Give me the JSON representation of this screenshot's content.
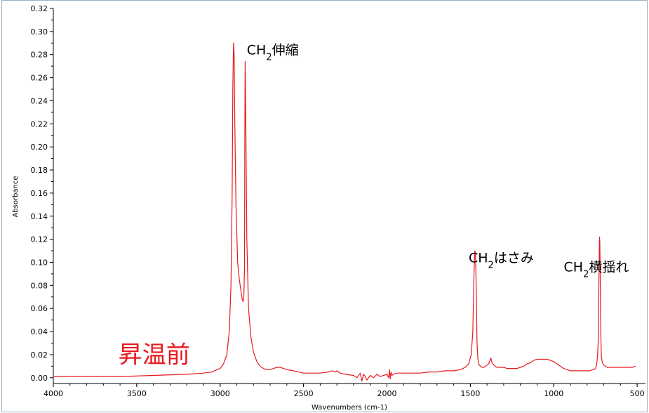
{
  "chart_data": {
    "type": "line",
    "title": "",
    "xlabel": "Wavenumbers (cm-1)",
    "ylabel": "Absorbance",
    "xlim": [
      4000,
      450
    ],
    "ylim": [
      -0.005,
      0.32
    ],
    "x_reversed": true,
    "grid": false,
    "x_ticks": [
      4000,
      3500,
      3000,
      2500,
      2000,
      1500,
      1000,
      500
    ],
    "x_tick_labels": [
      "4000",
      "3500",
      "3000",
      "2500",
      "2000",
      "1500",
      "1000",
      "500"
    ],
    "y_ticks": [
      0.0,
      0.02,
      0.04,
      0.06,
      0.08,
      0.1,
      0.12,
      0.14,
      0.16,
      0.18,
      0.2,
      0.22,
      0.24,
      0.26,
      0.28,
      0.3,
      0.32
    ],
    "y_tick_labels": [
      "0.00",
      "0.02",
      "0.04",
      "0.06",
      "0.08",
      "0.10",
      "0.12",
      "0.14",
      "0.16",
      "0.18",
      "0.20",
      "0.22",
      "0.24",
      "0.26",
      "0.28",
      "0.30",
      "0.32"
    ],
    "series": [
      {
        "color": "#e8191f",
        "x": [
          4000,
          3800,
          3600,
          3400,
          3200,
          3100,
          3050,
          3000,
          2980,
          2960,
          2945,
          2935,
          2928,
          2924,
          2920,
          2916,
          2912,
          2905,
          2895,
          2885,
          2875,
          2868,
          2862,
          2858,
          2854,
          2852,
          2850,
          2846,
          2840,
          2830,
          2815,
          2800,
          2780,
          2760,
          2740,
          2720,
          2700,
          2680,
          2660,
          2640,
          2620,
          2600,
          2560,
          2500,
          2400,
          2350,
          2330,
          2310,
          2300,
          2280,
          2250,
          2200,
          2180,
          2160,
          2150,
          2140,
          2130,
          2120,
          2100,
          2080,
          2060,
          2040,
          2020,
          2000,
          1990,
          1985,
          1980,
          1975,
          1970,
          1960,
          1940,
          1900,
          1850,
          1800,
          1750,
          1700,
          1650,
          1600,
          1560,
          1530,
          1510,
          1495,
          1485,
          1478,
          1473,
          1470,
          1467,
          1463,
          1460,
          1455,
          1450,
          1440,
          1430,
          1420,
          1410,
          1400,
          1390,
          1380,
          1377,
          1374,
          1370,
          1365,
          1360,
          1350,
          1340,
          1330,
          1310,
          1300,
          1280,
          1250,
          1220,
          1200,
          1180,
          1160,
          1140,
          1120,
          1100,
          1080,
          1060,
          1040,
          1020,
          1000,
          980,
          960,
          940,
          920,
          900,
          880,
          860,
          850,
          840,
          830,
          820,
          810,
          800,
          790,
          780,
          770,
          760,
          750,
          745,
          740,
          735,
          732,
          730,
          728,
          726,
          724,
          722,
          720,
          718,
          716,
          714,
          710,
          705,
          700,
          690,
          680,
          670,
          650,
          630,
          610,
          590,
          570,
          550,
          530,
          510
        ],
        "y": [
          0.001,
          0.001,
          0.001,
          0.002,
          0.003,
          0.004,
          0.005,
          0.008,
          0.012,
          0.02,
          0.04,
          0.08,
          0.16,
          0.25,
          0.29,
          0.28,
          0.22,
          0.15,
          0.1,
          0.085,
          0.075,
          0.068,
          0.066,
          0.07,
          0.095,
          0.2,
          0.274,
          0.22,
          0.12,
          0.06,
          0.035,
          0.022,
          0.014,
          0.01,
          0.008,
          0.007,
          0.007,
          0.008,
          0.009,
          0.009,
          0.008,
          0.007,
          0.006,
          0.004,
          0.004,
          0.005,
          0.006,
          0.005,
          0.006,
          0.004,
          0.003,
          0.002,
          0.0,
          0.004,
          -0.003,
          0.003,
          0.001,
          -0.002,
          0.002,
          0.0,
          0.003,
          0.001,
          0.002,
          0.003,
          0.0,
          0.007,
          -0.001,
          0.005,
          0.002,
          0.003,
          0.004,
          0.004,
          0.004,
          0.004,
          0.005,
          0.005,
          0.006,
          0.006,
          0.007,
          0.009,
          0.012,
          0.02,
          0.04,
          0.09,
          0.11,
          0.108,
          0.095,
          0.06,
          0.03,
          0.017,
          0.012,
          0.01,
          0.009,
          0.009,
          0.01,
          0.011,
          0.012,
          0.016,
          0.017,
          0.015,
          0.013,
          0.012,
          0.011,
          0.01,
          0.009,
          0.009,
          0.009,
          0.009,
          0.008,
          0.008,
          0.008,
          0.009,
          0.01,
          0.012,
          0.013,
          0.015,
          0.016,
          0.016,
          0.016,
          0.016,
          0.015,
          0.014,
          0.012,
          0.01,
          0.008,
          0.007,
          0.006,
          0.006,
          0.006,
          0.006,
          0.006,
          0.006,
          0.006,
          0.006,
          0.006,
          0.006,
          0.006,
          0.007,
          0.007,
          0.008,
          0.01,
          0.015,
          0.025,
          0.04,
          0.07,
          0.1,
          0.122,
          0.118,
          0.1,
          0.07,
          0.04,
          0.025,
          0.018,
          0.014,
          0.012,
          0.011,
          0.01,
          0.009,
          0.009,
          0.009,
          0.009,
          0.009,
          0.009,
          0.009,
          0.009,
          0.009,
          0.01
        ]
      }
    ],
    "annotations": [
      {
        "base": "CH",
        "sub": "2",
        "rest": "伸縮",
        "x": 2840,
        "y": 0.28
      },
      {
        "base": "CH",
        "sub": "2",
        "rest": "はさみ",
        "x": 1510,
        "y": 0.1
      },
      {
        "base": "CH",
        "sub": "2",
        "rest": "横揺れ",
        "x": 940,
        "y": 0.092
      }
    ],
    "label_red": {
      "text": "昇温前",
      "color": "#e8191f",
      "x": 3610,
      "y": 0.013
    }
  }
}
